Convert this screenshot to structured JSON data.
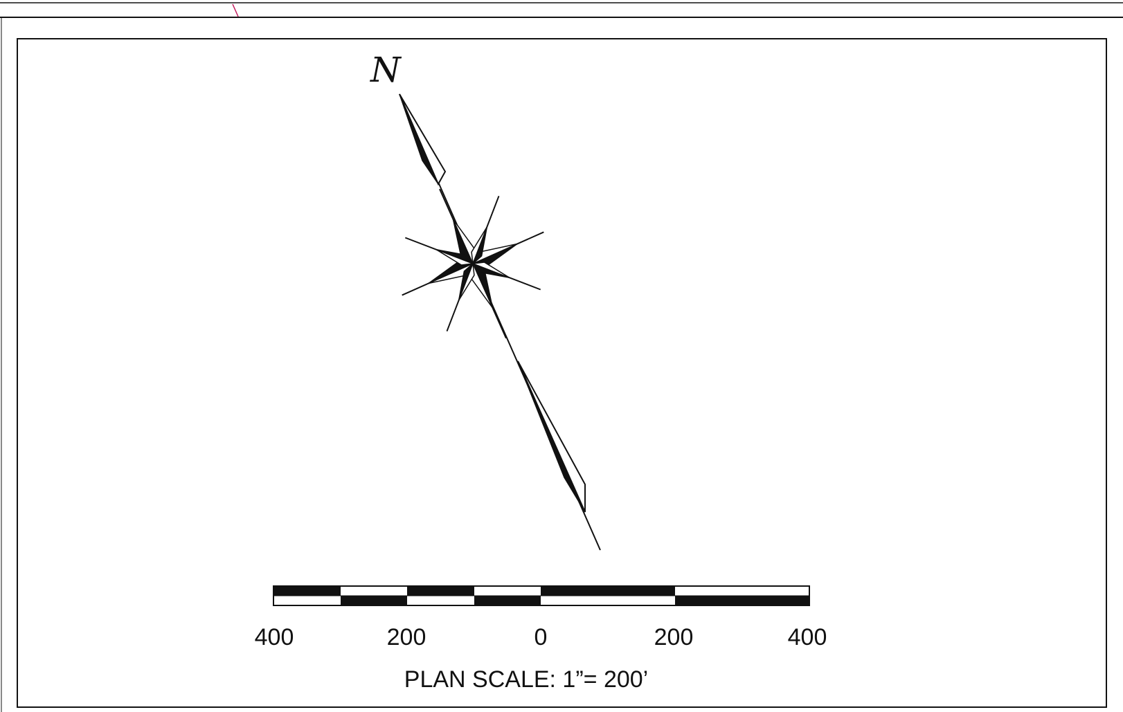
{
  "north_arrow": {
    "letter": "N"
  },
  "scale_bar": {
    "tick_labels": [
      "400",
      "200",
      "0",
      "200",
      "400"
    ],
    "caption": "PLAN SCALE: 1”= 200’"
  },
  "colors": {
    "ink": "#111111",
    "accent_mark": "#c2185b"
  }
}
